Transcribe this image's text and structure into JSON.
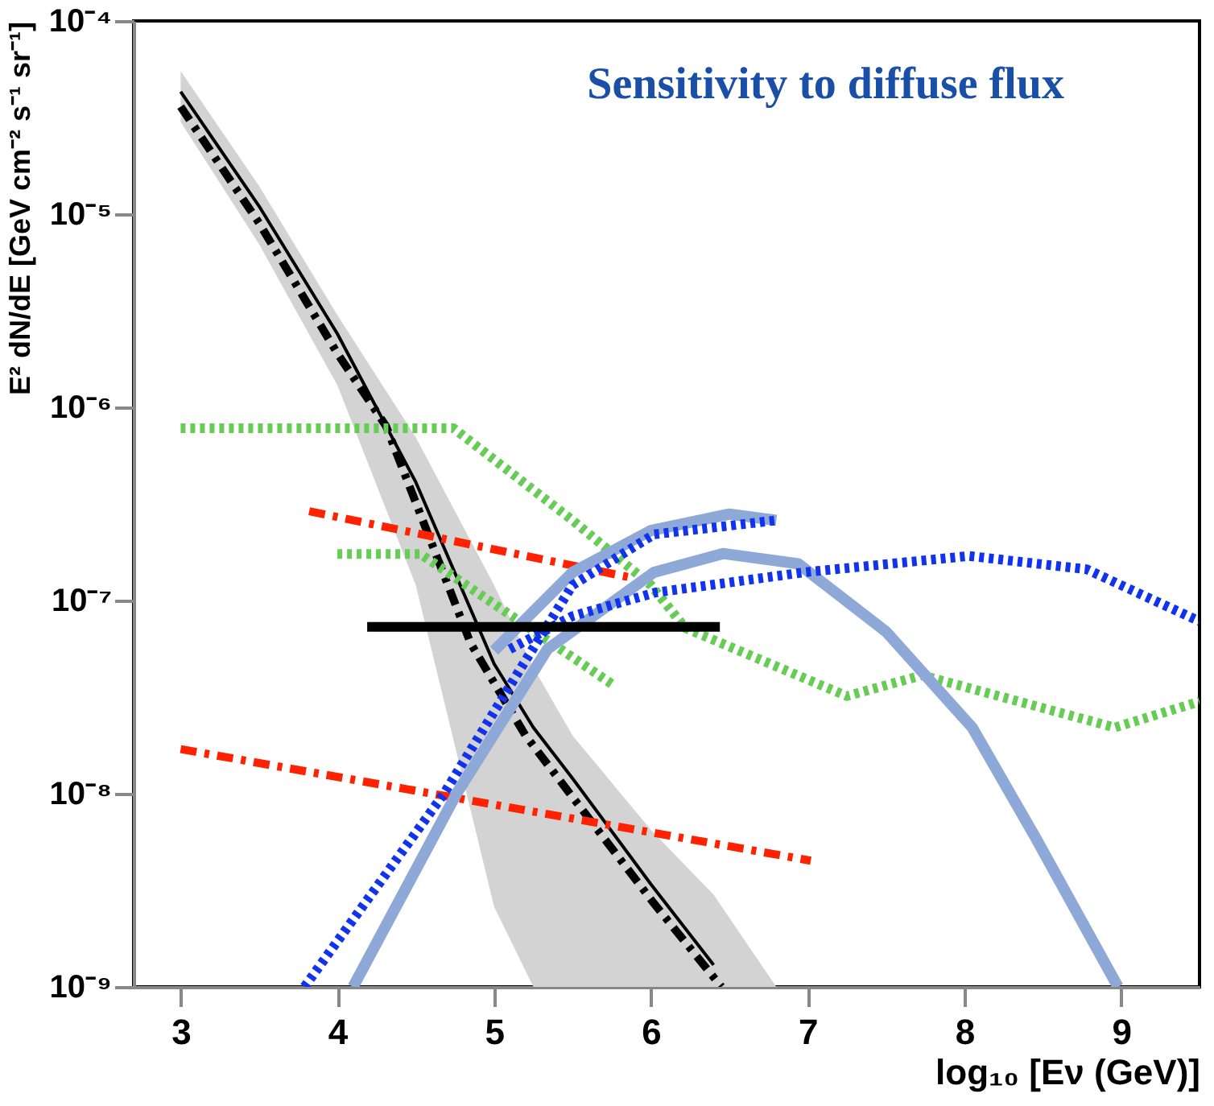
{
  "chart_data": {
    "type": "line",
    "title": "Sensitivity to diffuse flux",
    "xlabel": "log₁₀ [Eν (GeV)]",
    "ylabel": "E² dN/dE [GeV cm⁻² s⁻¹ sr⁻¹]",
    "xlim": [
      2.7,
      9.5
    ],
    "xticks": [
      3,
      4,
      5,
      6,
      7,
      8,
      9
    ],
    "ylim": [
      1e-09,
      0.0001
    ],
    "log": true,
    "yticks": [
      {
        "value": 1e-09,
        "label": "10⁻⁹"
      },
      {
        "value": 1e-08,
        "label": "10⁻⁸"
      },
      {
        "value": 1e-07,
        "label": "10⁻⁷"
      },
      {
        "value": 1e-06,
        "label": "10⁻⁶"
      },
      {
        "value": 1e-05,
        "label": "10⁻⁵"
      },
      {
        "value": 0.0001,
        "label": "10⁻⁴"
      }
    ],
    "grid": false,
    "series": [
      {
        "color": "#000000",
        "line_style": "solid",
        "x": [
          3,
          3.5,
          4,
          4.5,
          5,
          5.25,
          5.5,
          6,
          6.4,
          6.8
        ],
        "values": [
          4.3e-05,
          1.1e-05,
          2.4e-06,
          4.1e-07,
          4.7e-08,
          2.2e-08,
          1.2e-08,
          3.4e-09,
          1.3e-09,
          null
        ],
        "lower": [
          3e-05,
          7e-06,
          1.3e-06,
          1.2e-07,
          2.6e-09,
          1e-09,
          1e-09,
          1e-09,
          1e-09,
          1e-09
        ],
        "upper": [
          5.5e-05,
          1.4e-05,
          3e-06,
          7e-07,
          1.2e-07,
          4.5e-08,
          2e-08,
          6.5e-09,
          3e-09,
          1e-09
        ]
      },
      {
        "color": "#000000",
        "line_style": "dashed",
        "x": [
          3,
          3.5,
          4,
          4.31,
          4.85,
          5.2,
          6.02,
          6.45
        ],
        "values": [
          3.6e-05,
          9e-06,
          1.9e-06,
          8e-07,
          6e-08,
          2e-08,
          2.7e-09,
          1e-09
        ]
      },
      {
        "color": "#ff2200",
        "line_style": "dashed",
        "x": [
          3.82,
          5.9
        ],
        "values": [
          2.9e-07,
          1.3e-07
        ]
      },
      {
        "color": "#ff2200",
        "line_style": "dashed",
        "x": [
          3.0,
          7.02
        ],
        "values": [
          1.7e-08,
          4.5e-09
        ]
      },
      {
        "color": "#66cc55",
        "line_style": "dotted",
        "x": [
          3.0,
          4.74,
          5.5,
          6.0,
          6.22,
          7.25,
          7.73,
          8.96,
          9.5
        ],
        "values": [
          7.8e-07,
          7.8e-07,
          2.6e-07,
          1.2e-07,
          7.2e-08,
          3.2e-08,
          4.1e-08,
          2.2e-08,
          3e-08
        ]
      },
      {
        "color": "#66cc55",
        "line_style": "dotted",
        "x": [
          4.0,
          4.53,
          5.75
        ],
        "values": [
          1.74e-07,
          1.74e-07,
          3.7e-08
        ]
      },
      {
        "color": "#8ea8d8",
        "line_style": "solid",
        "x": [
          4.1,
          4.76,
          5.34,
          6.02,
          6.46,
          6.94,
          7.5,
          8.05,
          8.45,
          8.98
        ],
        "values": [
          1e-09,
          1e-08,
          5.6e-08,
          1.4e-07,
          1.75e-07,
          1.55e-07,
          6.9e-08,
          2.2e-08,
          6e-09,
          1e-09
        ]
      },
      {
        "color": "#8ea8d8",
        "line_style": "solid",
        "x": [
          5.0,
          5.5,
          6.0,
          6.5,
          6.8
        ],
        "values": [
          5.5e-08,
          1.4e-07,
          2.3e-07,
          2.8e-07,
          2.6e-07
        ]
      },
      {
        "color": "#1133ee",
        "line_style": "dotted",
        "x": [
          3.79,
          4.68,
          5.18,
          5.5,
          6.02,
          6.8
        ],
        "values": [
          1e-09,
          1e-08,
          4.6e-08,
          1.2e-07,
          2.2e-07,
          2.6e-07
        ]
      },
      {
        "color": "#1133ee",
        "line_style": "dotted",
        "x": [
          5.1,
          5.5,
          6.03,
          6.98,
          8.03,
          8.78,
          9.5
        ],
        "values": [
          5.6e-08,
          8.3e-08,
          1.1e-07,
          1.4e-07,
          1.7e-07,
          1.45e-07,
          7.8e-08
        ]
      },
      {
        "color": "#000000",
        "line_style": "solid",
        "x": [
          4.19,
          6.44
        ],
        "values": [
          7.3e-08,
          7.3e-08
        ]
      }
    ]
  }
}
